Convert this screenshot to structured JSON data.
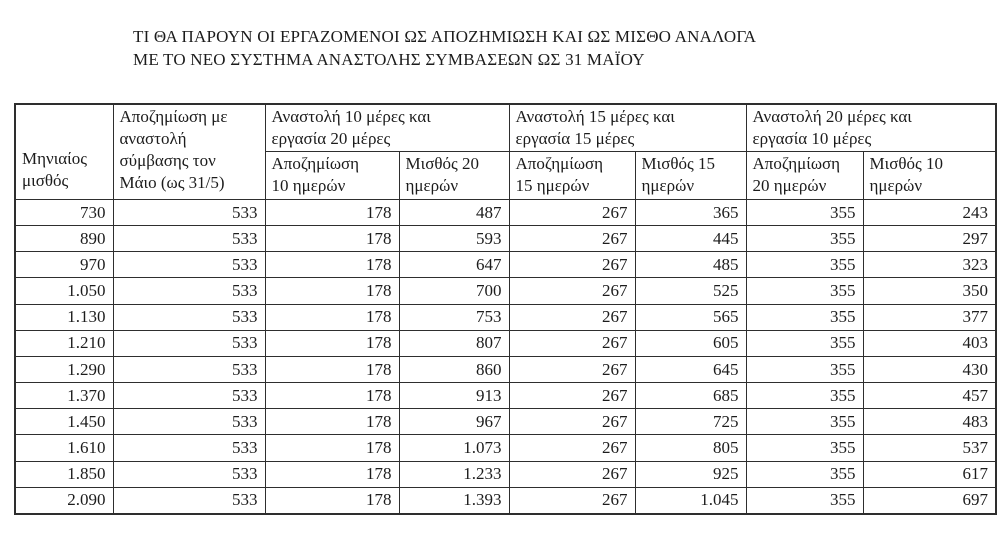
{
  "title": {
    "line1": "ΤΙ ΘΑ ΠΑΡΟΥΝ ΟΙ ΕΡΓΑΖΟΜΕΝΟΙ ΩΣ ΑΠΟΖΗΜΙΩΣΗ ΚΑΙ ΩΣ ΜΙΣΘΟ ΑΝΑΛΟΓΑ",
    "line2": "ΜΕ ΤΟ ΝΕΟ ΣΥΣΤΗΜΑ ΑΝΑΣΤΟΛΗΣ ΣΥΜΒΑΣΕΩΝ ΩΣ 31 ΜΑΪΟΥ"
  },
  "table": {
    "header": {
      "monthly_salary": "Μηνιαίος\nμισθός",
      "full_suspension": "Αποζημίωση με\nαναστολή\nσύμβασης τον\nΜάιο (ως 31/5)",
      "groups": [
        {
          "label": "Αναστολή 10 μέρες και\nεργασία 20 μέρες",
          "sub": [
            "Αποζημίωση\n10 ημερών",
            "Μισθός 20\nημερών"
          ]
        },
        {
          "label": "Αναστολή 15 μέρες και\nεργασία 15 μέρες",
          "sub": [
            "Αποζημίωση\n15 ημερών",
            "Μισθός 15\nημερών"
          ]
        },
        {
          "label": "Αναστολή 20 μέρες και\nεργασία 10 μέρες",
          "sub": [
            "Αποζημίωση\n20 ημερών",
            "Μισθός 10\nημερών"
          ]
        }
      ]
    },
    "rows": [
      [
        "730",
        "533",
        "178",
        "487",
        "267",
        "365",
        "355",
        "243"
      ],
      [
        "890",
        "533",
        "178",
        "593",
        "267",
        "445",
        "355",
        "297"
      ],
      [
        "970",
        "533",
        "178",
        "647",
        "267",
        "485",
        "355",
        "323"
      ],
      [
        "1.050",
        "533",
        "178",
        "700",
        "267",
        "525",
        "355",
        "350"
      ],
      [
        "1.130",
        "533",
        "178",
        "753",
        "267",
        "565",
        "355",
        "377"
      ],
      [
        "1.210",
        "533",
        "178",
        "807",
        "267",
        "605",
        "355",
        "403"
      ],
      [
        "1.290",
        "533",
        "178",
        "860",
        "267",
        "645",
        "355",
        "430"
      ],
      [
        "1.370",
        "533",
        "178",
        "913",
        "267",
        "685",
        "355",
        "457"
      ],
      [
        "1.450",
        "533",
        "178",
        "967",
        "267",
        "725",
        "355",
        "483"
      ],
      [
        "1.610",
        "533",
        "178",
        "1.073",
        "267",
        "805",
        "355",
        "537"
      ],
      [
        "1.850",
        "533",
        "178",
        "1.233",
        "267",
        "925",
        "355",
        "617"
      ],
      [
        "2.090",
        "533",
        "178",
        "1.393",
        "267",
        "1.045",
        "355",
        "697"
      ]
    ]
  }
}
